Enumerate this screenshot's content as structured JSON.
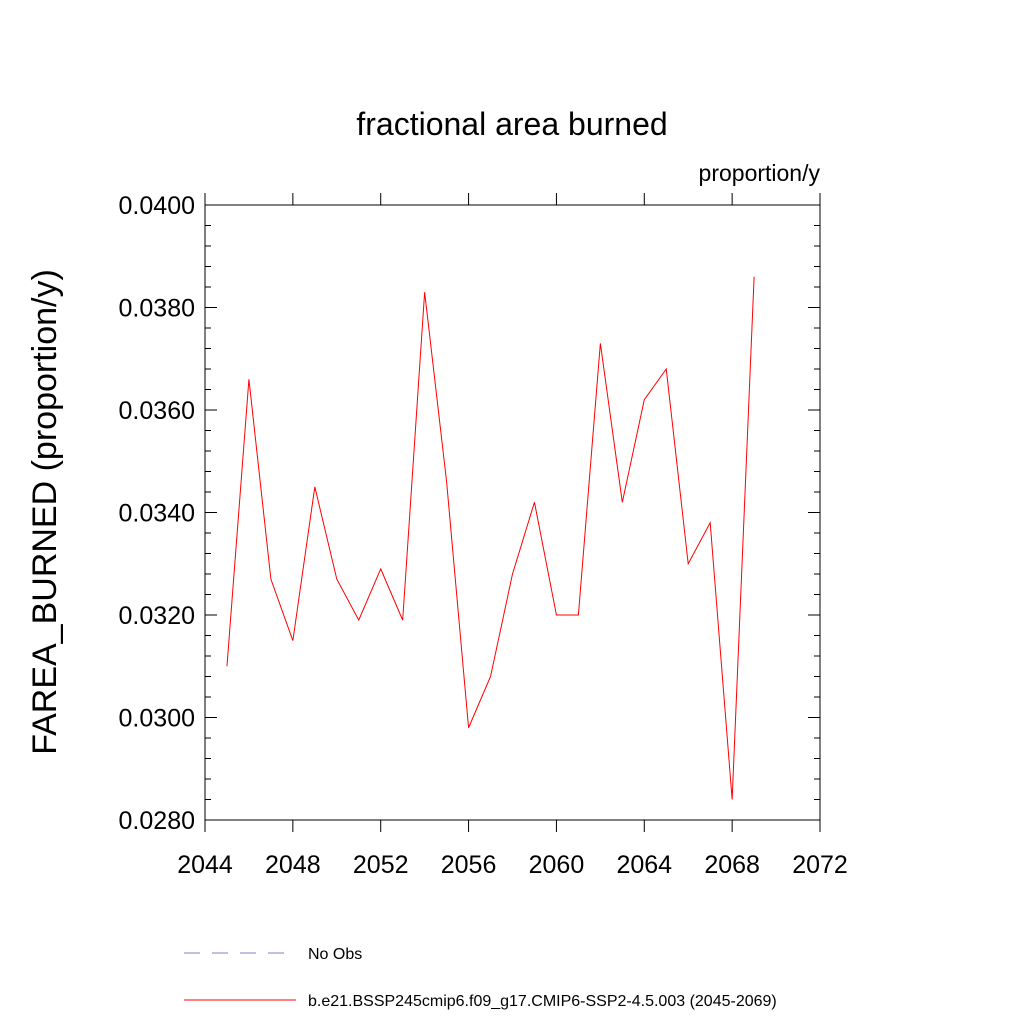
{
  "chart_data": {
    "type": "line",
    "title": "fractional area burned",
    "units_label": "proportion/y",
    "ylabel": "FAREA_BURNED  (proportion/y)",
    "xlabel": "",
    "xlim": [
      2044,
      2072
    ],
    "ylim": [
      0.028,
      0.04
    ],
    "x_ticks": [
      2044,
      2048,
      2052,
      2056,
      2060,
      2064,
      2068,
      2072
    ],
    "x_tick_labels": [
      "2044",
      "2048",
      "2052",
      "2056",
      "2060",
      "2064",
      "2068",
      "2072"
    ],
    "y_ticks": [
      0.028,
      0.03,
      0.032,
      0.034,
      0.036,
      0.038,
      0.04
    ],
    "y_tick_labels": [
      "0.0280",
      "0.0300",
      "0.0320",
      "0.0340",
      "0.0360",
      "0.0380",
      "0.0400"
    ],
    "grid": false,
    "legend_position": "bottom",
    "series": [
      {
        "name": "b.e21.BSSP245cmip6.f09_g17.CMIP6-SSP2-4.5.003 (2045-2069)",
        "color": "#ff0000",
        "dash": "solid",
        "x": [
          2045,
          2046,
          2047,
          2048,
          2049,
          2050,
          2051,
          2052,
          2053,
          2054,
          2055,
          2056,
          2057,
          2058,
          2059,
          2060,
          2061,
          2062,
          2063,
          2064,
          2065,
          2066,
          2067,
          2068,
          2069
        ],
        "values": [
          0.031,
          0.0366,
          0.0327,
          0.0315,
          0.0345,
          0.0327,
          0.0319,
          0.0329,
          0.0319,
          0.0383,
          0.0346,
          0.0298,
          0.0308,
          0.0328,
          0.0342,
          0.032,
          0.032,
          0.0373,
          0.0342,
          0.0362,
          0.0368,
          0.033,
          0.0338,
          0.0284,
          0.0386
        ]
      }
    ],
    "legend": [
      {
        "label": "No Obs",
        "color": "#8080c0",
        "dash": "dashed"
      },
      {
        "label": "b.e21.BSSP245cmip6.f09_g17.CMIP6-SSP2-4.5.003 (2045-2069)",
        "color": "#ff0000",
        "dash": "solid"
      }
    ]
  }
}
